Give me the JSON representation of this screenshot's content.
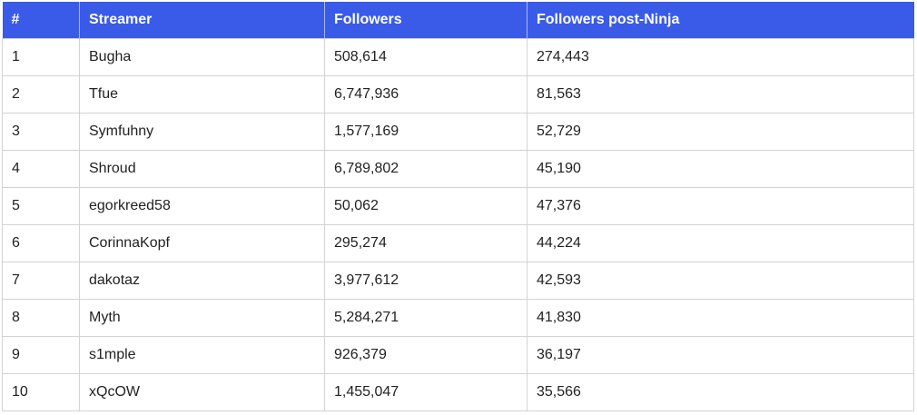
{
  "table": {
    "headers": [
      "#",
      "Streamer",
      "Followers",
      "Followers post-Ninja"
    ],
    "rows": [
      [
        "1",
        "Bugha",
        "508,614",
        "274,443"
      ],
      [
        "2",
        "Tfue",
        "6,747,936",
        "81,563"
      ],
      [
        "3",
        "Symfuhny",
        "1,577,169",
        "52,729"
      ],
      [
        "4",
        "Shroud",
        "6,789,802",
        "45,190"
      ],
      [
        "5",
        "egorkreed58",
        "50,062",
        "47,376"
      ],
      [
        "6",
        "CorinnaKopf",
        "295,274",
        "44,224"
      ],
      [
        "7",
        "dakotaz",
        "3,977,612",
        "42,593"
      ],
      [
        "8",
        "Myth",
        "5,284,271",
        "41,830"
      ],
      [
        "9",
        "s1mple",
        "926,379",
        "36,197"
      ],
      [
        "10",
        "xQcOW",
        "1,455,047",
        "35,566"
      ]
    ]
  },
  "colors": {
    "header_bg": "#3a5be8",
    "header_text": "#ffffff",
    "border": "#d3d3d3"
  }
}
